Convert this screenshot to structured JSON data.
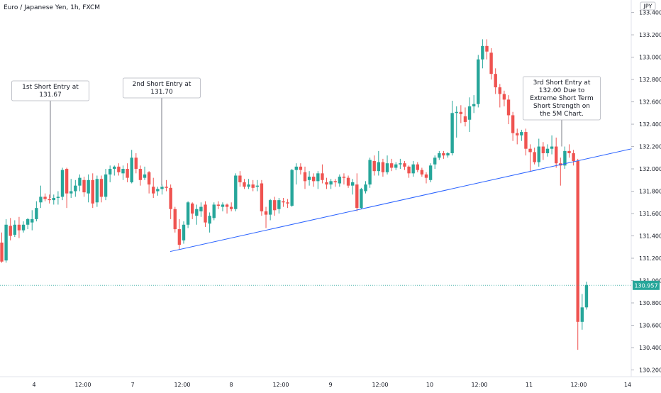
{
  "header": {
    "pair_title": "Euro / Japanese Yen, 1h, FXCM",
    "currency_badge": "JPY"
  },
  "colors": {
    "up": "#26a69a",
    "down": "#ef5350",
    "trendline": "#2962ff",
    "price_line": "#26a69a",
    "axis_text": "#131722",
    "annotation_border": "#b2b5be"
  },
  "annotations": [
    {
      "lines": [
        "1st Short Entry at",
        "131.67"
      ]
    },
    {
      "lines": [
        "2nd Short Entry at",
        "131.70"
      ]
    },
    {
      "lines": [
        "3rd Short Entry at",
        "132.00 Due to",
        "Extreme Short Term",
        "Short Strength on",
        "the 5M Chart."
      ]
    }
  ],
  "chart_data": {
    "type": "candlestick",
    "title": "Euro / Japanese Yen, 1h, FXCM",
    "y_unit": "JPY",
    "ylim": [
      130.13,
      133.48
    ],
    "y_ticks": [
      "133.400",
      "133.200",
      "133.000",
      "132.800",
      "132.600",
      "132.400",
      "132.200",
      "132.000",
      "131.800",
      "131.600",
      "131.400",
      "131.200",
      "131.000",
      "130.800",
      "130.600",
      "130.400",
      "130.200"
    ],
    "x_ticks": [
      "4",
      "12:00",
      "7",
      "12:00",
      "8",
      "12:00",
      "9",
      "12:00",
      "10",
      "12:00",
      "11",
      "12:00",
      "14"
    ],
    "last_price": "130.957",
    "trendline": {
      "start": [
        "7 13:00",
        131.26
      ],
      "end": [
        "14 ~01:00",
        132.18
      ]
    },
    "candles": [
      [
        131.34,
        131.43,
        131.16,
        131.17
      ],
      [
        131.18,
        131.55,
        131.16,
        131.5
      ],
      [
        131.49,
        131.56,
        131.36,
        131.4
      ],
      [
        131.41,
        131.54,
        131.39,
        131.5
      ],
      [
        131.5,
        131.57,
        131.38,
        131.45
      ],
      [
        131.45,
        131.53,
        131.43,
        131.5
      ],
      [
        131.5,
        131.56,
        131.46,
        131.55
      ],
      [
        131.52,
        131.63,
        131.45,
        131.55
      ],
      [
        131.55,
        131.71,
        131.53,
        131.65
      ],
      [
        131.7,
        131.85,
        131.65,
        131.75
      ],
      [
        131.75,
        131.78,
        131.71,
        131.73
      ],
      [
        131.73,
        131.77,
        131.69,
        131.72
      ],
      [
        131.72,
        131.77,
        131.68,
        131.74
      ],
      [
        131.74,
        131.8,
        131.68,
        131.75
      ],
      [
        131.75,
        132.01,
        131.72,
        131.99
      ],
      [
        132.0,
        132.01,
        131.65,
        131.78
      ],
      [
        131.78,
        131.91,
        131.74,
        131.8
      ],
      [
        131.8,
        131.9,
        131.75,
        131.85
      ],
      [
        131.85,
        131.95,
        131.8,
        131.92
      ],
      [
        131.9,
        131.93,
        131.75,
        131.79
      ],
      [
        131.78,
        131.95,
        131.7,
        131.9
      ],
      [
        131.9,
        131.96,
        131.65,
        131.69
      ],
      [
        131.7,
        131.94,
        131.66,
        131.91
      ],
      [
        131.91,
        131.94,
        131.7,
        131.75
      ],
      [
        131.75,
        132.0,
        131.72,
        131.95
      ],
      [
        131.95,
        132.03,
        131.88,
        132.0
      ],
      [
        132.0,
        132.03,
        131.94,
        132.02
      ],
      [
        132.02,
        132.05,
        131.94,
        131.97
      ],
      [
        131.96,
        132.03,
        131.9,
        132.0
      ],
      [
        132.0,
        132.05,
        131.88,
        131.92
      ],
      [
        131.88,
        132.17,
        131.87,
        132.1
      ],
      [
        132.1,
        132.14,
        131.96,
        132.0
      ],
      [
        132.0,
        132.03,
        131.85,
        131.9
      ],
      [
        131.92,
        132.02,
        131.9,
        131.95
      ],
      [
        131.97,
        131.98,
        131.78,
        131.86
      ],
      [
        131.84,
        131.92,
        131.74,
        131.78
      ],
      [
        131.8,
        131.84,
        131.76,
        131.82
      ],
      [
        131.82,
        131.86,
        131.77,
        131.84
      ],
      [
        131.84,
        131.9,
        131.8,
        131.83
      ],
      [
        131.83,
        131.86,
        131.55,
        131.64
      ],
      [
        131.64,
        131.66,
        131.43,
        131.46
      ],
      [
        131.46,
        131.55,
        131.28,
        131.32
      ],
      [
        131.36,
        131.53,
        131.33,
        131.5
      ],
      [
        131.5,
        131.71,
        131.47,
        131.7
      ],
      [
        131.69,
        131.7,
        131.55,
        131.6
      ],
      [
        131.58,
        131.68,
        131.5,
        131.64
      ],
      [
        131.62,
        131.7,
        131.57,
        131.66
      ],
      [
        131.68,
        131.71,
        131.48,
        131.52
      ],
      [
        131.51,
        131.61,
        131.43,
        131.58
      ],
      [
        131.56,
        131.7,
        131.54,
        131.68
      ],
      [
        131.68,
        131.71,
        131.64,
        131.67
      ],
      [
        131.66,
        131.7,
        131.62,
        131.68
      ],
      [
        131.68,
        131.69,
        131.6,
        131.66
      ],
      [
        131.66,
        131.7,
        131.62,
        131.64
      ],
      [
        131.64,
        131.96,
        131.62,
        131.94
      ],
      [
        131.94,
        131.98,
        131.84,
        131.88
      ],
      [
        131.88,
        131.91,
        131.82,
        131.84
      ],
      [
        131.84,
        131.91,
        131.82,
        131.86
      ],
      [
        131.86,
        131.9,
        131.8,
        131.83
      ],
      [
        131.84,
        131.9,
        131.8,
        131.85
      ],
      [
        131.87,
        131.9,
        131.58,
        131.62
      ],
      [
        131.62,
        131.66,
        131.47,
        131.59
      ],
      [
        131.59,
        131.73,
        131.54,
        131.72
      ],
      [
        131.72,
        131.75,
        131.58,
        131.63
      ],
      [
        131.64,
        131.74,
        131.6,
        131.72
      ],
      [
        131.71,
        131.74,
        131.66,
        131.7
      ],
      [
        131.7,
        131.73,
        131.65,
        131.69
      ],
      [
        131.67,
        132.0,
        131.66,
        131.99
      ],
      [
        131.99,
        132.05,
        131.86,
        132.02
      ],
      [
        132.02,
        132.05,
        131.95,
        131.99
      ],
      [
        131.97,
        132.02,
        131.82,
        131.89
      ],
      [
        131.9,
        131.98,
        131.85,
        131.93
      ],
      [
        131.93,
        131.96,
        131.84,
        131.89
      ],
      [
        131.89,
        131.98,
        131.82,
        131.96
      ],
      [
        131.96,
        132.04,
        131.87,
        131.9
      ],
      [
        131.88,
        131.92,
        131.82,
        131.86
      ],
      [
        131.86,
        131.91,
        131.82,
        131.89
      ],
      [
        131.89,
        131.91,
        131.84,
        131.88
      ],
      [
        131.87,
        131.95,
        131.84,
        131.93
      ],
      [
        131.93,
        131.96,
        131.86,
        131.92
      ],
      [
        131.92,
        131.94,
        131.83,
        131.85
      ],
      [
        131.85,
        131.91,
        131.77,
        131.88
      ],
      [
        131.86,
        131.96,
        131.62,
        131.65
      ],
      [
        131.65,
        131.83,
        131.64,
        131.82
      ],
      [
        131.8,
        131.89,
        131.78,
        131.86
      ],
      [
        131.86,
        132.1,
        131.83,
        132.08
      ],
      [
        132.07,
        132.12,
        131.94,
        131.98
      ],
      [
        131.98,
        132.16,
        131.94,
        132.06
      ],
      [
        132.06,
        132.09,
        131.93,
        131.97
      ],
      [
        131.97,
        132.12,
        131.95,
        132.05
      ],
      [
        132.05,
        132.09,
        131.98,
        132.01
      ],
      [
        132.01,
        132.06,
        131.99,
        132.04
      ],
      [
        132.04,
        132.09,
        132.0,
        132.05
      ],
      [
        132.05,
        132.07,
        131.99,
        132.02
      ],
      [
        132.02,
        132.03,
        131.92,
        131.96
      ],
      [
        131.96,
        132.07,
        131.93,
        132.04
      ],
      [
        132.04,
        132.06,
        131.97,
        131.99
      ],
      [
        131.99,
        132.01,
        131.93,
        131.95
      ],
      [
        131.95,
        131.97,
        131.87,
        131.92
      ],
      [
        131.9,
        132.05,
        131.88,
        132.03
      ],
      [
        132.04,
        132.12,
        132.0,
        132.1
      ],
      [
        132.1,
        132.16,
        132.08,
        132.14
      ],
      [
        132.14,
        132.16,
        132.09,
        132.12
      ],
      [
        132.12,
        132.15,
        132.1,
        132.14
      ],
      [
        132.14,
        132.61,
        132.12,
        132.5
      ],
      [
        132.5,
        132.56,
        132.28,
        132.51
      ],
      [
        132.51,
        132.57,
        132.41,
        132.49
      ],
      [
        132.47,
        132.55,
        132.38,
        132.42
      ],
      [
        132.44,
        132.64,
        132.33,
        132.56
      ],
      [
        132.56,
        132.66,
        132.5,
        132.58
      ],
      [
        132.58,
        133.02,
        132.55,
        132.98
      ],
      [
        132.98,
        133.16,
        132.9,
        133.1
      ],
      [
        133.1,
        133.16,
        132.98,
        133.05
      ],
      [
        133.04,
        133.08,
        132.8,
        132.85
      ],
      [
        132.85,
        132.9,
        132.67,
        132.73
      ],
      [
        132.73,
        132.76,
        132.55,
        132.67
      ],
      [
        132.67,
        132.7,
        132.56,
        132.62
      ],
      [
        132.62,
        132.66,
        132.4,
        132.48
      ],
      [
        132.48,
        132.51,
        132.25,
        132.32
      ],
      [
        132.32,
        132.36,
        132.22,
        132.3
      ],
      [
        132.3,
        132.35,
        132.25,
        132.33
      ],
      [
        132.33,
        132.36,
        132.12,
        132.18
      ],
      [
        132.18,
        132.22,
        131.98,
        132.15
      ],
      [
        132.15,
        132.19,
        132.04,
        132.06
      ],
      [
        132.06,
        132.27,
        132.02,
        132.2
      ],
      [
        132.2,
        132.24,
        132.08,
        132.14
      ],
      [
        132.14,
        132.22,
        132.11,
        132.18
      ],
      [
        132.18,
        132.3,
        132.13,
        132.2
      ],
      [
        132.2,
        132.28,
        132.01,
        132.05
      ],
      [
        132.05,
        132.1,
        131.85,
        132.03
      ],
      [
        132.03,
        132.2,
        132.0,
        132.16
      ],
      [
        132.16,
        132.22,
        132.1,
        132.14
      ],
      [
        132.14,
        132.17,
        132.03,
        132.07
      ],
      [
        132.07,
        132.09,
        130.38,
        130.63
      ],
      [
        130.63,
        130.88,
        130.56,
        130.76
      ],
      [
        130.76,
        130.99,
        130.74,
        130.96
      ]
    ]
  }
}
